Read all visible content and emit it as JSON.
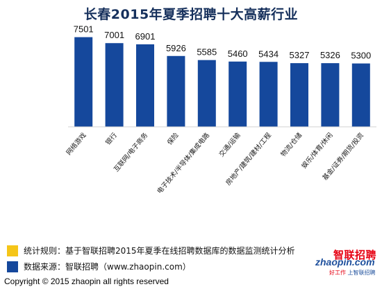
{
  "chart_data": {
    "type": "bar",
    "title": "长春2015年夏季招聘十大高薪行业",
    "categories": [
      "网络游戏",
      "银行",
      "互联网/电子商务",
      "保险",
      "电子技术/半导体/集成电路",
      "交通/运输",
      "房地产/建筑/建材/工程",
      "物流/仓储",
      "娱乐/体育/休闲",
      "基金/证券/期货/投资"
    ],
    "values": [
      7501,
      7001,
      6901,
      5926,
      5585,
      5460,
      5434,
      5327,
      5326,
      5300
    ],
    "bar_color": "#15489c",
    "grid": false,
    "data_labels": true
  },
  "legend": {
    "rule": {
      "color": "#f5c518",
      "text": "统计规则：基于智联招聘2015年夏季在线招聘数据库的数据监测统计分析"
    },
    "source": {
      "color": "#15489c",
      "text": "数据来源：智联招聘（www.zhaopin.com）"
    }
  },
  "footer": {
    "copyright": "Copyright  ©  2015 zhaopin all rights reserved"
  },
  "logo": {
    "name": "智联招聘",
    "domain": "zhaopin.com",
    "slogan_left": "好工作",
    "slogan_right": "上智联招聘"
  }
}
